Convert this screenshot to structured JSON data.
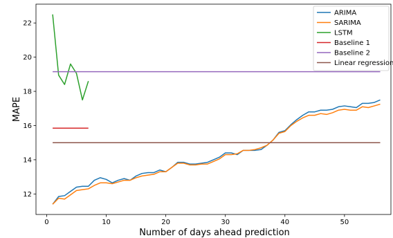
{
  "chart_data": {
    "type": "line",
    "title": "",
    "xlabel": "Number of days ahead prediction",
    "ylabel": "MAPE",
    "xlim": [
      -1.8,
      57.8
    ],
    "ylim": [
      10.8,
      23.1
    ],
    "xticks": [
      0,
      10,
      20,
      30,
      40,
      50
    ],
    "yticks": [
      12,
      14,
      16,
      18,
      20,
      22
    ],
    "grid": false,
    "legend_position": "top-right",
    "series": [
      {
        "name": "ARIMA",
        "color": "#1f77b4",
        "x": [
          1,
          2,
          3,
          4,
          5,
          6,
          7,
          8,
          9,
          10,
          11,
          12,
          13,
          14,
          15,
          16,
          17,
          18,
          19,
          20,
          21,
          22,
          23,
          24,
          25,
          26,
          27,
          28,
          29,
          30,
          31,
          32,
          33,
          34,
          35,
          36,
          37,
          38,
          39,
          40,
          41,
          42,
          43,
          44,
          45,
          46,
          47,
          48,
          49,
          50,
          51,
          52,
          53,
          54,
          55,
          56
        ],
        "y": [
          11.4,
          11.85,
          11.9,
          12.15,
          12.4,
          12.45,
          12.45,
          12.8,
          12.95,
          12.85,
          12.65,
          12.8,
          12.9,
          12.8,
          13.05,
          13.2,
          13.25,
          13.25,
          13.4,
          13.3,
          13.55,
          13.85,
          13.85,
          13.75,
          13.75,
          13.8,
          13.85,
          14.0,
          14.15,
          14.4,
          14.4,
          14.3,
          14.55,
          14.55,
          14.55,
          14.6,
          14.85,
          15.15,
          15.6,
          15.7,
          16.05,
          16.35,
          16.6,
          16.8,
          16.8,
          16.9,
          16.9,
          16.95,
          17.1,
          17.15,
          17.1,
          17.05,
          17.3,
          17.3,
          17.35,
          17.5
        ]
      },
      {
        "name": "SARIMA",
        "color": "#ff7f0e",
        "x": [
          1,
          2,
          3,
          4,
          5,
          6,
          7,
          8,
          9,
          10,
          11,
          12,
          13,
          14,
          15,
          16,
          17,
          18,
          19,
          20,
          21,
          22,
          23,
          24,
          25,
          26,
          27,
          28,
          29,
          30,
          31,
          32,
          33,
          34,
          35,
          36,
          37,
          38,
          39,
          40,
          41,
          42,
          43,
          44,
          45,
          46,
          47,
          48,
          49,
          50,
          51,
          52,
          53,
          54,
          55,
          56
        ],
        "y": [
          11.4,
          11.75,
          11.7,
          11.95,
          12.2,
          12.25,
          12.3,
          12.5,
          12.65,
          12.65,
          12.6,
          12.7,
          12.8,
          12.8,
          12.95,
          13.05,
          13.1,
          13.15,
          13.3,
          13.3,
          13.55,
          13.8,
          13.8,
          13.7,
          13.7,
          13.75,
          13.75,
          13.9,
          14.05,
          14.3,
          14.3,
          14.35,
          14.55,
          14.55,
          14.6,
          14.7,
          14.85,
          15.15,
          15.55,
          15.65,
          16.0,
          16.25,
          16.45,
          16.6,
          16.6,
          16.7,
          16.65,
          16.75,
          16.9,
          16.95,
          16.9,
          16.9,
          17.1,
          17.05,
          17.15,
          17.25
        ]
      },
      {
        "name": "LSTM",
        "color": "#2ca02c",
        "x": [
          1,
          2,
          3,
          4,
          5,
          6,
          7
        ],
        "y": [
          22.5,
          18.95,
          18.4,
          19.6,
          19.05,
          17.5,
          18.6
        ]
      },
      {
        "name": "Baseline 1",
        "color": "#d62728",
        "x": [
          1,
          7
        ],
        "y": [
          15.85,
          15.85
        ]
      },
      {
        "name": "Baseline 2",
        "color": "#9467bd",
        "x": [
          1,
          56
        ],
        "y": [
          19.15,
          19.15
        ]
      },
      {
        "name": "Linear regression",
        "color": "#8c564b",
        "x": [
          1,
          56
        ],
        "y": [
          15.0,
          15.0
        ]
      }
    ]
  }
}
